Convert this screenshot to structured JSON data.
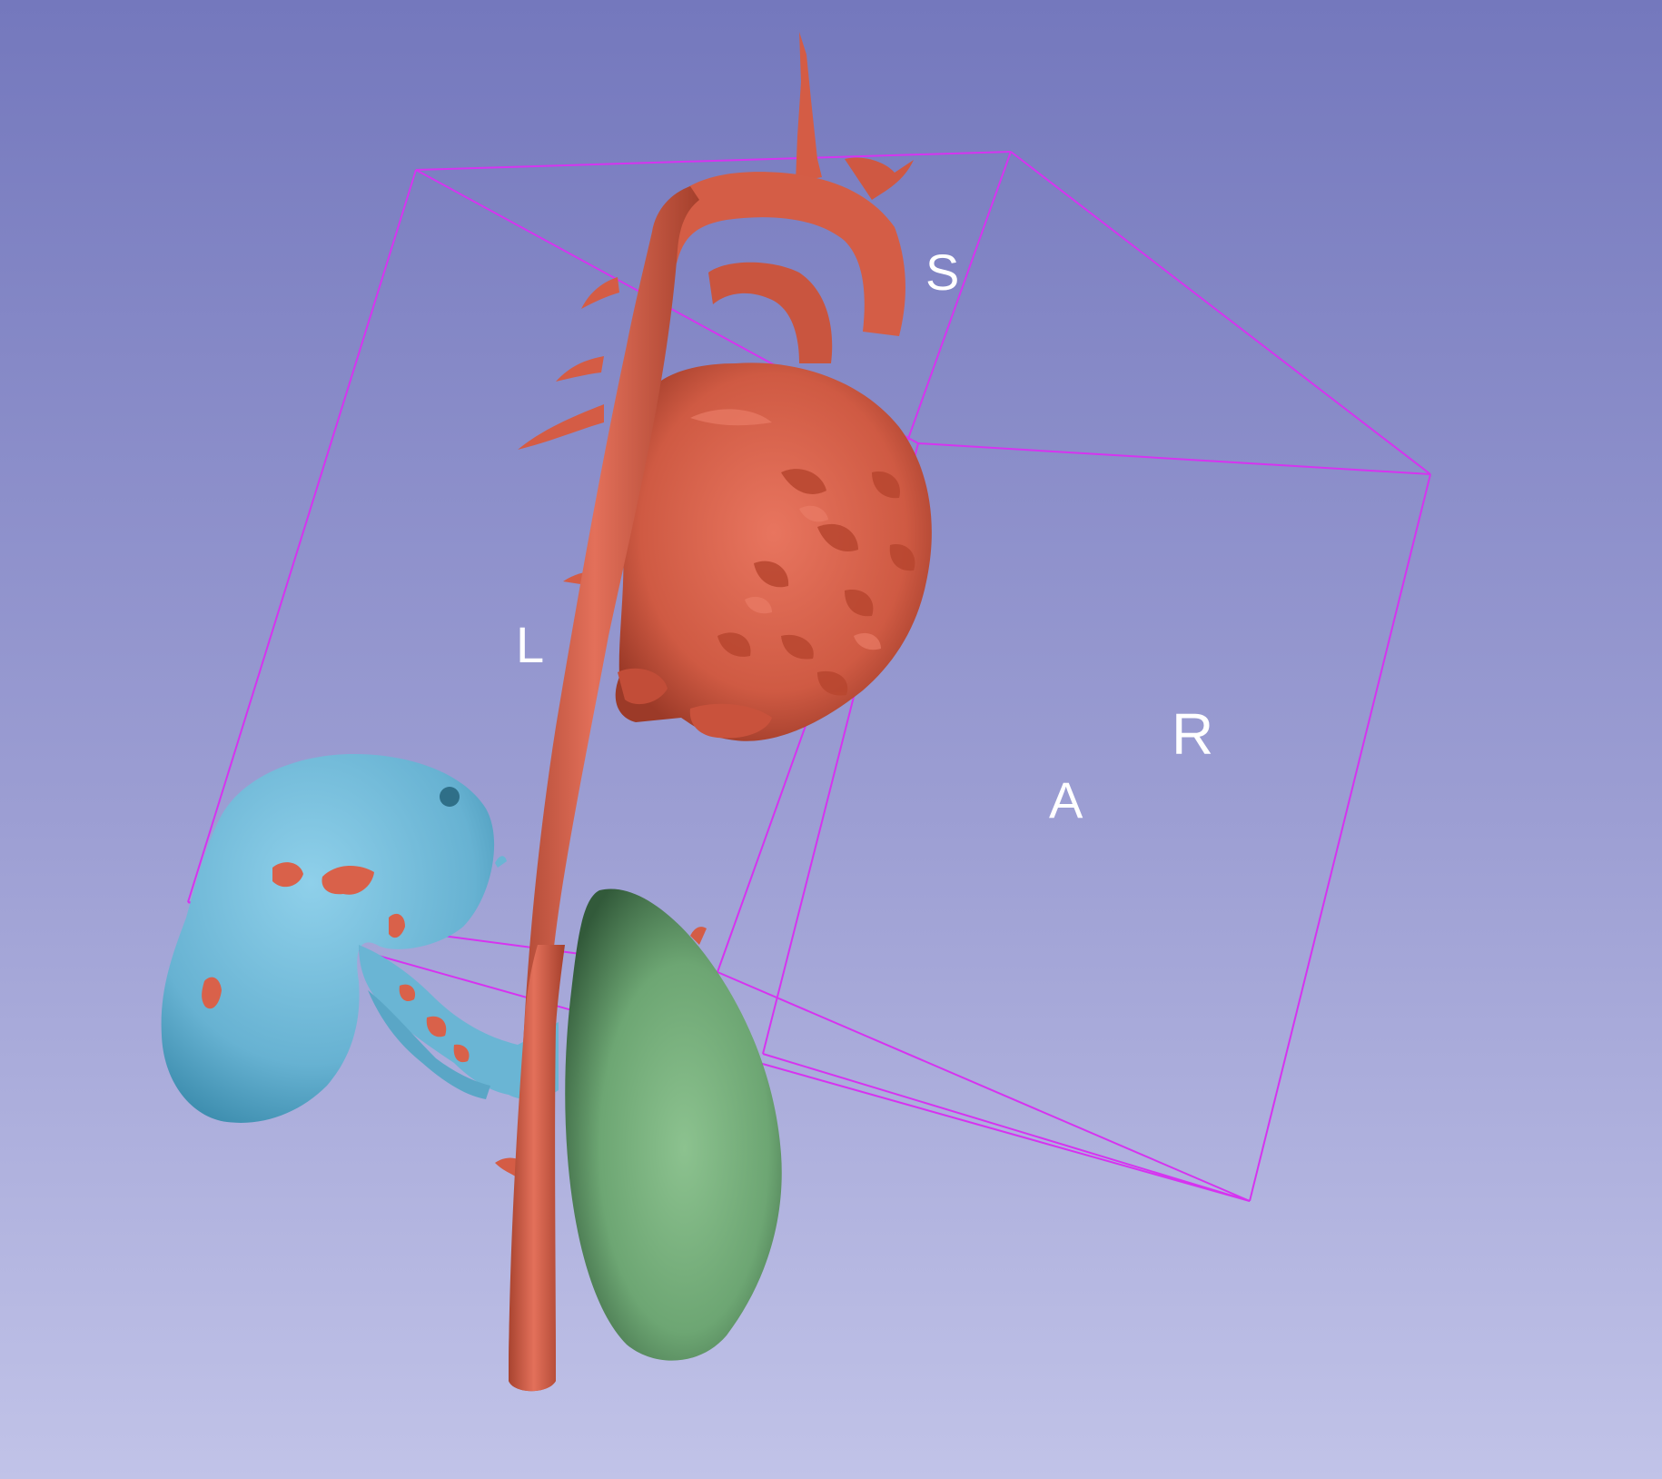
{
  "viewer": {
    "orientation_labels": {
      "superior": "S",
      "left": "L",
      "right": "R",
      "anterior": "A"
    }
  },
  "colors": {
    "background_top": "#7478bd",
    "background_bottom": "#c1c3e8",
    "vessels": "#d9624a",
    "kidney": "#6eb8d6",
    "spleen": "#7bae7e",
    "bounding_box": "#d633f0",
    "label": "#ffffff"
  },
  "models": [
    "vessels",
    "kidney",
    "spleen"
  ],
  "icons": [
    "orientation-marker"
  ]
}
